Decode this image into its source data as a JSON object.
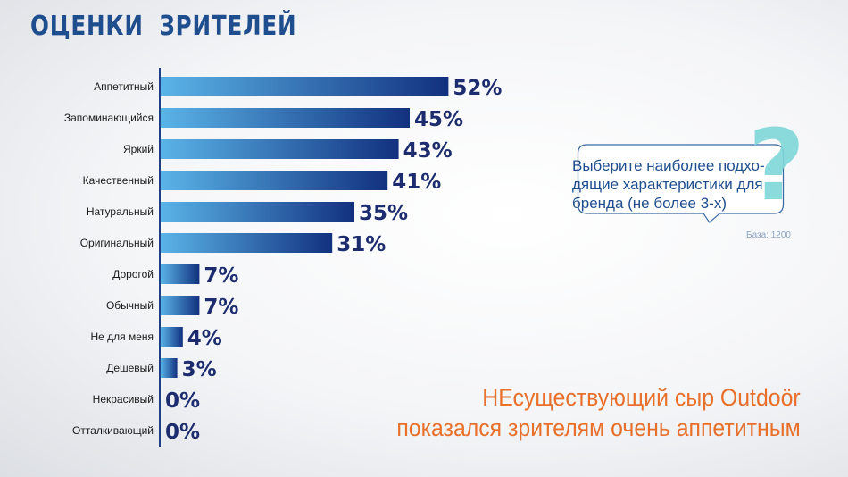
{
  "title": "ОЦЕНКИ  ЗРИТЕЛЕЙ",
  "chart_data": {
    "type": "bar",
    "orientation": "horizontal",
    "categories": [
      "Аппетитный",
      "Запоминающийся",
      "Яркий",
      "Качественный",
      "Натуральный",
      "Оригинальный",
      "Дорогой",
      "Обычный",
      "Не для меня",
      "Дешевый",
      "Некрасивый",
      "Отталкивающий"
    ],
    "values": [
      52,
      45,
      43,
      41,
      35,
      31,
      7,
      7,
      4,
      3,
      0,
      0
    ],
    "value_labels": [
      "52%",
      "45%",
      "43%",
      "41%",
      "35%",
      "31%",
      "7%",
      "7%",
      "4%",
      "3%",
      "0%",
      "0%"
    ],
    "unit": "%",
    "xlim": [
      0,
      100
    ],
    "bar_color_start": "#5ab4e8",
    "bar_color_end": "#12317f",
    "grid": false
  },
  "question": {
    "text": "Выберите наиболее подхо-\nдящие характеристики для\nбренда (не более 3-х)",
    "mark": "?",
    "base": "База: 1200"
  },
  "conclusion": "НЕсуществующий сыр Outdoör\nпоказался зрителям очень аппетитным",
  "colors": {
    "title": "#1f4e8f",
    "accent_orange": "#e8702a",
    "question_mark": "#7fd7d9"
  }
}
